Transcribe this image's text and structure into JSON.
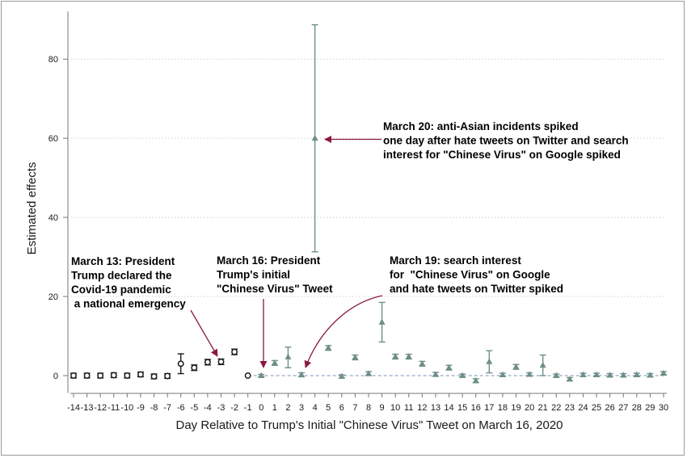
{
  "chart_data": {
    "type": "scatter",
    "xlabel": "Day Relative to Trump's Initial \"Chinese Virus\" Tweet on March 16, 2020",
    "ylabel": "Estimated effects",
    "xlim": [
      -14,
      30
    ],
    "ylim": [
      -4,
      90
    ],
    "y_ticks": [
      0,
      20,
      40,
      60,
      80
    ],
    "grid": true,
    "reference_line": 0,
    "colors": {
      "pre": "#1a1a1a",
      "post": "#6e8f87",
      "arrow": "#8b1a3c",
      "ref": "#7f93b3"
    },
    "series": [
      {
        "marker": "circle",
        "points": [
          {
            "x": -14,
            "y": 0.0,
            "lo": -0.6,
            "hi": 0.6
          },
          {
            "x": -13,
            "y": 0.0,
            "lo": -0.6,
            "hi": 0.6
          },
          {
            "x": -12,
            "y": 0.0,
            "lo": -0.6,
            "hi": 0.6
          },
          {
            "x": -11,
            "y": 0.1,
            "lo": -0.5,
            "hi": 0.7
          },
          {
            "x": -10,
            "y": 0.0,
            "lo": -0.6,
            "hi": 0.6
          },
          {
            "x": -9,
            "y": 0.3,
            "lo": -0.3,
            "hi": 0.9
          },
          {
            "x": -8,
            "y": -0.2,
            "lo": -0.8,
            "hi": 0.4
          },
          {
            "x": -7,
            "y": -0.1,
            "lo": -0.7,
            "hi": 0.5
          },
          {
            "x": -6,
            "y": 3.0,
            "lo": 0.5,
            "hi": 5.5
          },
          {
            "x": -5,
            "y": 2.0,
            "lo": 1.3,
            "hi": 2.7
          },
          {
            "x": -4,
            "y": 3.4,
            "lo": 2.7,
            "hi": 4.1
          },
          {
            "x": -3,
            "y": 3.5,
            "lo": 2.8,
            "hi": 4.2
          },
          {
            "x": -2,
            "y": 6.0,
            "lo": 5.3,
            "hi": 6.7
          },
          {
            "x": -1,
            "y": 0.0,
            "lo": 0.0,
            "hi": 0.0
          }
        ]
      },
      {
        "marker": "triangle",
        "points": [
          {
            "x": 0,
            "y": 0.0,
            "lo": -0.3,
            "hi": 0.3
          },
          {
            "x": 1,
            "y": 3.2,
            "lo": 2.6,
            "hi": 3.8
          },
          {
            "x": 2,
            "y": 4.7,
            "lo": 2.0,
            "hi": 7.2
          },
          {
            "x": 3,
            "y": 0.2,
            "lo": -0.3,
            "hi": 0.7
          },
          {
            "x": 4,
            "y": 60.0,
            "lo": 31.3,
            "hi": 88.7
          },
          {
            "x": 5,
            "y": 7.0,
            "lo": 6.4,
            "hi": 7.6
          },
          {
            "x": 6,
            "y": -0.2,
            "lo": -0.6,
            "hi": 0.2
          },
          {
            "x": 7,
            "y": 4.6,
            "lo": 4.0,
            "hi": 5.2
          },
          {
            "x": 8,
            "y": 0.5,
            "lo": 0.0,
            "hi": 1.0
          },
          {
            "x": 9,
            "y": 13.5,
            "lo": 8.5,
            "hi": 18.5
          },
          {
            "x": 10,
            "y": 4.8,
            "lo": 4.2,
            "hi": 5.4
          },
          {
            "x": 11,
            "y": 4.8,
            "lo": 4.2,
            "hi": 5.4
          },
          {
            "x": 12,
            "y": 3.0,
            "lo": 2.4,
            "hi": 3.6
          },
          {
            "x": 13,
            "y": 0.3,
            "lo": -0.2,
            "hi": 0.8
          },
          {
            "x": 14,
            "y": 2.0,
            "lo": 1.4,
            "hi": 2.6
          },
          {
            "x": 15,
            "y": 0.0,
            "lo": -0.4,
            "hi": 0.4
          },
          {
            "x": 16,
            "y": -1.3,
            "lo": -1.8,
            "hi": -0.8
          },
          {
            "x": 17,
            "y": 3.5,
            "lo": 0.7,
            "hi": 6.3
          },
          {
            "x": 18,
            "y": 0.2,
            "lo": -0.2,
            "hi": 0.6
          },
          {
            "x": 19,
            "y": 2.2,
            "lo": 1.6,
            "hi": 2.8
          },
          {
            "x": 20,
            "y": 0.3,
            "lo": -0.1,
            "hi": 0.7
          },
          {
            "x": 21,
            "y": 2.6,
            "lo": 0.0,
            "hi": 5.2
          },
          {
            "x": 22,
            "y": 0.0,
            "lo": -0.4,
            "hi": 0.4
          },
          {
            "x": 23,
            "y": -0.9,
            "lo": -1.3,
            "hi": -0.5
          },
          {
            "x": 24,
            "y": 0.2,
            "lo": -0.2,
            "hi": 0.6
          },
          {
            "x": 25,
            "y": 0.2,
            "lo": -0.2,
            "hi": 0.6
          },
          {
            "x": 26,
            "y": 0.1,
            "lo": -0.3,
            "hi": 0.5
          },
          {
            "x": 27,
            "y": 0.1,
            "lo": -0.3,
            "hi": 0.5
          },
          {
            "x": 28,
            "y": 0.2,
            "lo": -0.2,
            "hi": 0.6
          },
          {
            "x": 29,
            "y": 0.1,
            "lo": -0.3,
            "hi": 0.5
          },
          {
            "x": 30,
            "y": 0.6,
            "lo": 0.2,
            "hi": 1.0
          }
        ]
      }
    ],
    "annotations": [
      {
        "lines": [
          "March 20: anti-Asian incidents spiked",
          "one day after hate tweets on Twitter and search",
          "interest for \"Chinese Virus\" on Google spiked"
        ],
        "target_x": 4,
        "target_y": 60
      },
      {
        "lines": [
          "March 13: President",
          "Trump declared the",
          "Covid-19 pandemic",
          " a national emergency"
        ],
        "target_x": -3,
        "target_y": 4.5
      },
      {
        "lines": [
          "March 16: President",
          "Trump's initial",
          "\"Chinese Virus\" Tweet"
        ],
        "target_x": 0,
        "target_y": 0.5
      },
      {
        "lines": [
          "March 19: search interest",
          "for  \"Chinese Virus\" on Google",
          "and hate tweets on Twitter spiked"
        ],
        "target_x": 3,
        "target_y": 1
      }
    ]
  }
}
